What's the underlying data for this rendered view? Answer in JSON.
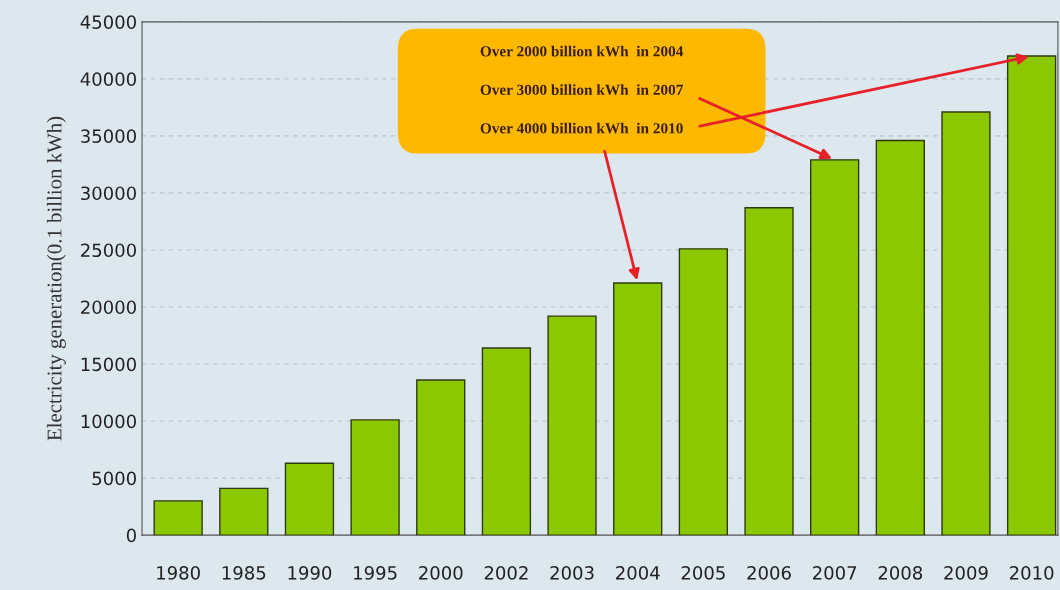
{
  "chart_data": {
    "type": "bar",
    "ylabel": "Electricity generation(0.1 billion kWh)",
    "categories": [
      "1980",
      "1985",
      "1990",
      "1995",
      "2000",
      "2002",
      "2003",
      "2004",
      "2005",
      "2006",
      "2007",
      "2008",
      "2009",
      "2010"
    ],
    "values": [
      3000,
      4100,
      6300,
      10100,
      13600,
      16400,
      19200,
      22100,
      25100,
      28700,
      32900,
      34600,
      37100,
      42000
    ],
    "color": "#8cc800",
    "ylim": [
      0,
      45000
    ],
    "yticks": [
      0,
      5000,
      10000,
      15000,
      20000,
      25000,
      30000,
      35000,
      40000,
      45000
    ],
    "grid": "y",
    "annotations": [
      {
        "text": "Over 2000 billion kWh  in 2004",
        "x": "2004",
        "y": 22100
      },
      {
        "text": "Over 3000 billion kWh  in 2007",
        "x": "2007",
        "y": 32900
      },
      {
        "text": "Over 4000 billion kWh  in 2010",
        "x": "2010",
        "y": 42000
      }
    ]
  }
}
